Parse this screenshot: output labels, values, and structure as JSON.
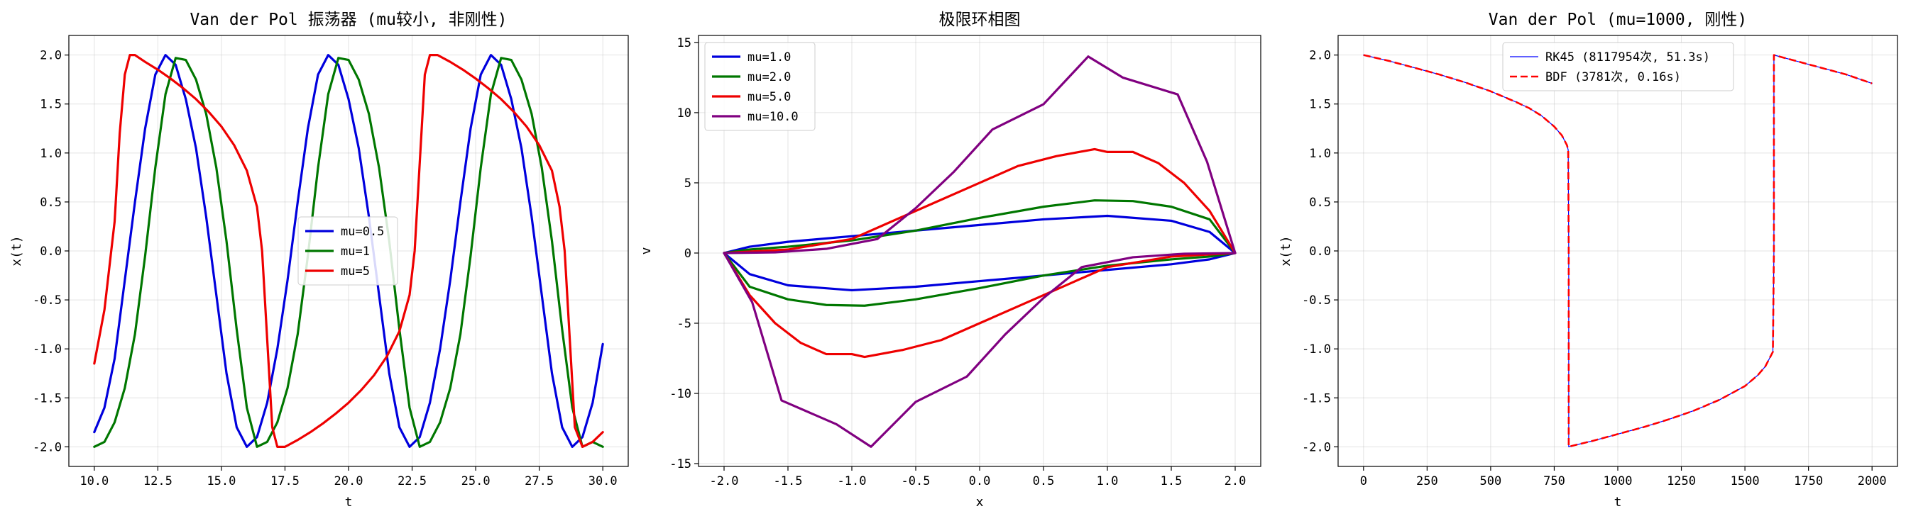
{
  "chart_data": [
    {
      "type": "line",
      "title": "Van der Pol 振荡器 (mu较小, 非刚性)",
      "xlabel": "t",
      "ylabel": "x(t)",
      "xlim": [
        9.0,
        31.0
      ],
      "ylim": [
        -2.2,
        2.2
      ],
      "xticks": [
        "10.0",
        "12.5",
        "15.0",
        "17.5",
        "20.0",
        "22.5",
        "25.0",
        "27.5",
        "30.0"
      ],
      "xtick_values": [
        10,
        12.5,
        15,
        17.5,
        20,
        22.5,
        25,
        27.5,
        30
      ],
      "yticks": [
        "-2.0",
        "-1.5",
        "-1.0",
        "-0.5",
        "0.0",
        "0.5",
        "1.0",
        "1.5",
        "2.0"
      ],
      "ytick_values": [
        -2,
        -1.5,
        -1,
        -0.5,
        0,
        0.5,
        1,
        1.5,
        2
      ],
      "grid": true,
      "legend": "center",
      "series": [
        {
          "name": "mu=0.5",
          "color": "#0000dd",
          "x": [
            10.0,
            10.4,
            10.8,
            11.2,
            11.6,
            12.0,
            12.4,
            12.8,
            13.2,
            13.6,
            14.0,
            14.4,
            14.8,
            15.2,
            15.6,
            16.0,
            16.4,
            16.8,
            17.2,
            17.6,
            18.0,
            18.4,
            18.8,
            19.2,
            19.6,
            20.0,
            20.4,
            20.8,
            21.2,
            21.6,
            22.0,
            22.4,
            22.8,
            23.2,
            23.6,
            24.0,
            24.4,
            24.8,
            25.2,
            25.6,
            26.0,
            26.4,
            26.8,
            27.2,
            27.6,
            28.0,
            28.4,
            28.8,
            29.2,
            29.6,
            30.0
          ],
          "y": [
            -1.85,
            -1.6,
            -1.1,
            -0.3,
            0.5,
            1.25,
            1.8,
            2.0,
            1.9,
            1.55,
            1.05,
            0.35,
            -0.45,
            -1.25,
            -1.8,
            -2.0,
            -1.9,
            -1.55,
            -1.0,
            -0.3,
            0.5,
            1.25,
            1.8,
            2.0,
            1.9,
            1.55,
            1.05,
            0.35,
            -0.45,
            -1.25,
            -1.8,
            -2.0,
            -1.9,
            -1.55,
            -1.0,
            -0.3,
            0.5,
            1.25,
            1.8,
            2.0,
            1.9,
            1.55,
            1.05,
            0.35,
            -0.45,
            -1.25,
            -1.8,
            -2.0,
            -1.9,
            -1.55,
            -0.95
          ]
        },
        {
          "name": "mu=1",
          "color": "#007700",
          "x": [
            10.0,
            10.4,
            10.8,
            11.2,
            11.6,
            12.0,
            12.4,
            12.8,
            13.2,
            13.6,
            14.0,
            14.4,
            14.8,
            15.2,
            15.6,
            16.0,
            16.4,
            16.8,
            17.2,
            17.6,
            18.0,
            18.4,
            18.8,
            19.2,
            19.6,
            20.0,
            20.4,
            20.8,
            21.2,
            21.6,
            22.0,
            22.4,
            22.8,
            23.2,
            23.6,
            24.0,
            24.4,
            24.8,
            25.2,
            25.6,
            26.0,
            26.4,
            26.8,
            27.2,
            27.6,
            28.0,
            28.4,
            28.8,
            29.2,
            29.6,
            30.0
          ],
          "y": [
            -2.0,
            -1.95,
            -1.75,
            -1.4,
            -0.85,
            -0.05,
            0.85,
            1.6,
            1.97,
            1.95,
            1.75,
            1.4,
            0.85,
            0.1,
            -0.8,
            -1.6,
            -2.0,
            -1.95,
            -1.75,
            -1.4,
            -0.85,
            -0.05,
            0.85,
            1.6,
            1.97,
            1.95,
            1.75,
            1.4,
            0.85,
            0.1,
            -0.8,
            -1.6,
            -2.0,
            -1.95,
            -1.75,
            -1.4,
            -0.85,
            -0.05,
            0.85,
            1.6,
            1.97,
            1.95,
            1.75,
            1.4,
            0.85,
            0.1,
            -0.8,
            -1.6,
            -2.0,
            -1.95,
            -2.0
          ]
        },
        {
          "name": "mu=5",
          "color": "#ee0000",
          "x": [
            10.0,
            10.4,
            10.8,
            11.0,
            11.2,
            11.4,
            11.6,
            12.0,
            12.5,
            13.0,
            13.5,
            14.0,
            14.5,
            15.0,
            15.5,
            16.0,
            16.4,
            16.6,
            16.8,
            17.0,
            17.2,
            17.5,
            18.0,
            18.5,
            19.0,
            19.5,
            20.0,
            20.5,
            21.0,
            21.5,
            22.0,
            22.4,
            22.6,
            22.8,
            23.0,
            23.2,
            23.5,
            24.0,
            24.5,
            25.0,
            25.5,
            26.0,
            26.5,
            27.0,
            27.5,
            28.0,
            28.3,
            28.5,
            28.7,
            28.9,
            29.2,
            29.6,
            30.0
          ],
          "y": [
            -1.15,
            -0.6,
            0.3,
            1.2,
            1.8,
            2.0,
            2.0,
            1.93,
            1.85,
            1.76,
            1.66,
            1.55,
            1.42,
            1.27,
            1.08,
            0.82,
            0.45,
            0.0,
            -0.9,
            -1.8,
            -2.0,
            -2.0,
            -1.93,
            -1.85,
            -1.76,
            -1.66,
            -1.55,
            -1.42,
            -1.27,
            -1.08,
            -0.82,
            -0.45,
            0.0,
            0.9,
            1.8,
            2.0,
            2.0,
            1.93,
            1.85,
            1.76,
            1.66,
            1.55,
            1.42,
            1.27,
            1.08,
            0.82,
            0.45,
            0.0,
            -0.9,
            -1.8,
            -2.0,
            -1.95,
            -1.85
          ]
        }
      ]
    },
    {
      "type": "line",
      "title": "极限环相图",
      "xlabel": "x",
      "ylabel": "v",
      "xlim": [
        -2.2,
        2.2
      ],
      "ylim": [
        -15.2,
        15.5
      ],
      "xticks": [
        "-2.0",
        "-1.5",
        "-1.0",
        "-0.5",
        "0.0",
        "0.5",
        "1.0",
        "1.5",
        "2.0"
      ],
      "xtick_values": [
        -2,
        -1.5,
        -1,
        -0.5,
        0,
        0.5,
        1,
        1.5,
        2
      ],
      "yticks": [
        "-15",
        "-10",
        "-5",
        "0",
        "5",
        "10",
        "15"
      ],
      "ytick_values": [
        -15,
        -10,
        -5,
        0,
        5,
        10,
        15
      ],
      "grid": true,
      "legend": "upper left",
      "series": [
        {
          "name": "mu=1.0",
          "color": "#0000dd",
          "x": [
            -2.0,
            -1.8,
            -1.5,
            -1.0,
            -0.5,
            0.0,
            0.5,
            1.0,
            1.5,
            1.8,
            2.0,
            1.8,
            1.5,
            1.0,
            0.5,
            0.0,
            -0.5,
            -1.0,
            -1.5,
            -1.8,
            -2.0
          ],
          "y": [
            0.0,
            0.45,
            0.8,
            1.2,
            1.6,
            2.0,
            2.4,
            2.65,
            2.3,
            1.5,
            0.0,
            -0.45,
            -0.8,
            -1.2,
            -1.6,
            -2.0,
            -2.4,
            -2.65,
            -2.3,
            -1.5,
            0.0
          ]
        },
        {
          "name": "mu=2.0",
          "color": "#007700",
          "x": [
            -2.0,
            -1.8,
            -1.5,
            -1.0,
            -0.5,
            0.0,
            0.5,
            0.9,
            1.2,
            1.5,
            1.8,
            2.0,
            1.8,
            1.5,
            1.0,
            0.5,
            0.0,
            -0.5,
            -0.9,
            -1.2,
            -1.5,
            -1.8,
            -2.0
          ],
          "y": [
            0.0,
            0.25,
            0.45,
            0.9,
            1.6,
            2.5,
            3.3,
            3.75,
            3.7,
            3.3,
            2.4,
            0.0,
            -0.25,
            -0.45,
            -0.9,
            -1.6,
            -2.5,
            -3.3,
            -3.75,
            -3.7,
            -3.3,
            -2.4,
            0.0
          ]
        },
        {
          "name": "mu=5.0",
          "color": "#ee0000",
          "x": [
            -2.0,
            -1.8,
            -1.5,
            -1.0,
            -0.7,
            -0.4,
            0.0,
            0.3,
            0.6,
            0.9,
            1.0,
            1.2,
            1.4,
            1.6,
            1.8,
            2.0,
            1.8,
            1.5,
            1.0,
            0.7,
            0.4,
            0.0,
            -0.3,
            -0.6,
            -0.9,
            -1.0,
            -1.2,
            -1.4,
            -1.6,
            -1.8,
            -2.0
          ],
          "y": [
            0.0,
            0.1,
            0.25,
            1.0,
            2.2,
            3.4,
            5.0,
            6.2,
            6.9,
            7.4,
            7.2,
            7.2,
            6.4,
            5.0,
            3.0,
            0.0,
            -0.1,
            -0.25,
            -1.0,
            -2.2,
            -3.4,
            -5.0,
            -6.2,
            -6.9,
            -7.4,
            -7.2,
            -7.2,
            -6.4,
            -5.0,
            -3.0,
            0.0
          ]
        },
        {
          "name": "mu=10.0",
          "color": "#800080",
          "x": [
            -2.0,
            -1.6,
            -1.2,
            -0.8,
            -0.5,
            -0.2,
            0.1,
            0.5,
            0.85,
            1.12,
            1.55,
            1.78,
            2.0,
            1.6,
            1.2,
            0.8,
            0.5,
            0.2,
            -0.1,
            -0.5,
            -0.85,
            -1.12,
            -1.55,
            -1.78,
            -2.0
          ],
          "y": [
            0.0,
            0.05,
            0.3,
            1.0,
            3.2,
            5.8,
            8.8,
            10.6,
            14.0,
            12.5,
            11.3,
            6.5,
            0.0,
            -0.05,
            -0.3,
            -1.0,
            -3.2,
            -5.8,
            -8.8,
            -10.6,
            -13.8,
            -12.2,
            -10.5,
            -3.5,
            0.0
          ]
        }
      ]
    },
    {
      "type": "line",
      "title": "Van der Pol (mu=1000, 刚性)",
      "xlabel": "t",
      "ylabel": "x(t)",
      "xlim": [
        -100,
        2100
      ],
      "ylim": [
        -2.2,
        2.2
      ],
      "xticks": [
        "0",
        "250",
        "500",
        "750",
        "1000",
        "1250",
        "1500",
        "1750",
        "2000"
      ],
      "xtick_values": [
        0,
        250,
        500,
        750,
        1000,
        1250,
        1500,
        1750,
        2000
      ],
      "yticks": [
        "-2.0",
        "-1.5",
        "-1.0",
        "-0.5",
        "0.0",
        "0.5",
        "1.0",
        "1.5",
        "2.0"
      ],
      "ytick_values": [
        -2,
        -1.5,
        -1,
        -0.5,
        0,
        0.5,
        1,
        1.5,
        2
      ],
      "grid": true,
      "legend": "upper center",
      "series": [
        {
          "name": "RK45 (8117954次, 51.3s)",
          "color": "#0000ff",
          "style": "solid",
          "x": [
            0,
            100,
            200,
            300,
            400,
            500,
            600,
            650,
            700,
            750,
            780,
            800,
            805,
            807,
            807,
            820,
            900,
            1000,
            1100,
            1200,
            1300,
            1400,
            1500,
            1550,
            1580,
            1600,
            1610,
            1614,
            1614,
            1700,
            1800,
            1900,
            2000
          ],
          "y": [
            2.0,
            1.94,
            1.87,
            1.8,
            1.72,
            1.63,
            1.52,
            1.46,
            1.38,
            1.27,
            1.18,
            1.08,
            1.03,
            0.0,
            -2.0,
            -1.99,
            -1.94,
            -1.87,
            -1.8,
            -1.72,
            -1.63,
            -1.52,
            -1.38,
            -1.27,
            -1.18,
            -1.08,
            -1.03,
            0.0,
            2.0,
            1.94,
            1.87,
            1.8,
            1.71
          ]
        },
        {
          "name": "BDF (3781次, 0.16s)",
          "color": "#ff0000",
          "style": "dashed",
          "x": [
            0,
            100,
            200,
            300,
            400,
            500,
            600,
            650,
            700,
            750,
            780,
            800,
            805,
            807,
            807,
            820,
            900,
            1000,
            1100,
            1200,
            1300,
            1400,
            1500,
            1550,
            1580,
            1600,
            1610,
            1614,
            1614,
            1700,
            1800,
            1900,
            2000
          ],
          "y": [
            2.0,
            1.94,
            1.87,
            1.8,
            1.72,
            1.63,
            1.52,
            1.46,
            1.38,
            1.27,
            1.18,
            1.08,
            1.03,
            0.0,
            -2.0,
            -1.99,
            -1.94,
            -1.87,
            -1.8,
            -1.72,
            -1.63,
            -1.52,
            -1.38,
            -1.27,
            -1.18,
            -1.08,
            -1.03,
            0.0,
            2.0,
            1.94,
            1.87,
            1.8,
            1.71
          ]
        }
      ]
    }
  ]
}
